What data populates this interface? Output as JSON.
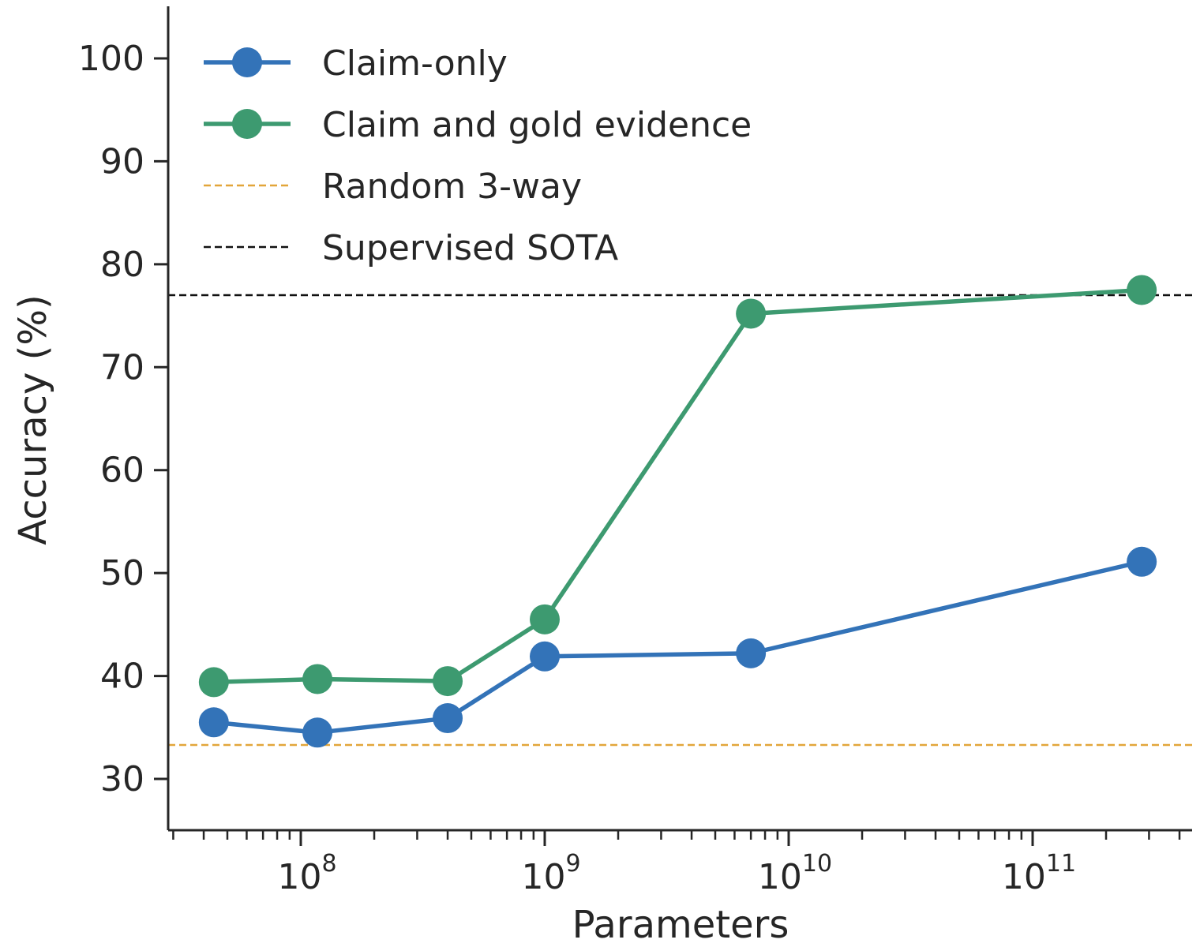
{
  "chart_data": {
    "type": "line",
    "xlabel": "Parameters",
    "ylabel": "Accuracy (%)",
    "xscale": "log",
    "xlim": [
      30000000,
      450000000000
    ],
    "ylim": [
      25,
      105
    ],
    "xticks": [
      {
        "value": 100000000,
        "base": "10",
        "exp": "8"
      },
      {
        "value": 1000000000,
        "base": "10",
        "exp": "9"
      },
      {
        "value": 10000000000,
        "base": "10",
        "exp": "10"
      },
      {
        "value": 100000000000,
        "base": "10",
        "exp": "11"
      }
    ],
    "yticks": [
      30,
      40,
      50,
      60,
      70,
      80,
      90,
      100
    ],
    "x": [
      44000000,
      117000000,
      400000000,
      1000000000,
      7000000000,
      280000000000
    ],
    "series": [
      {
        "name": "Claim-only",
        "color": "#3373b8",
        "values": [
          35.5,
          34.5,
          35.9,
          41.9,
          42.2,
          51.1
        ]
      },
      {
        "name": "Claim and gold evidence",
        "color": "#3d9a70",
        "values": [
          39.4,
          39.7,
          39.5,
          45.5,
          75.2,
          77.5
        ]
      }
    ],
    "reference_lines": [
      {
        "name": "Random 3-way",
        "value": 33.3,
        "color": "#e2a63a",
        "style": "dashed"
      },
      {
        "name": "Supervised SOTA",
        "value": 77.0,
        "color": "#111111",
        "style": "dashed"
      }
    ],
    "legend_position": "upper-left",
    "grid": false
  }
}
